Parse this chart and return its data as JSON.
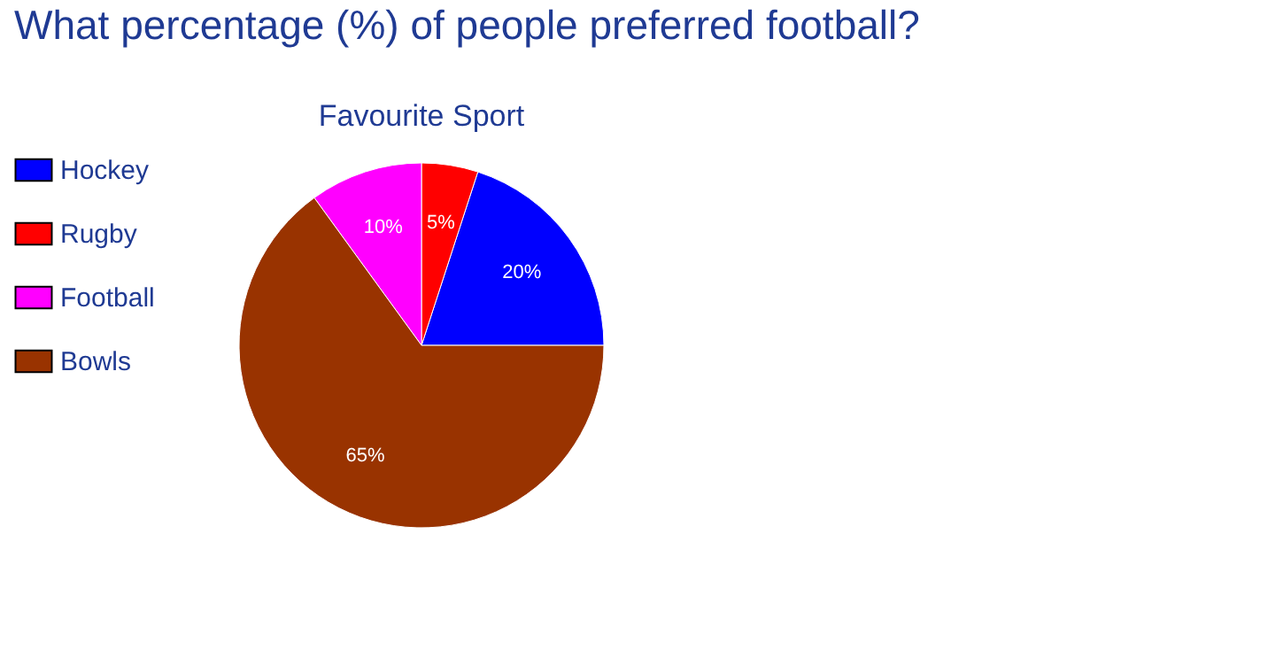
{
  "chart_data": {
    "type": "pie",
    "title": "What percentage (%) of people preferred football?",
    "subtitle": "Favourite Sport",
    "categories": [
      "Hockey",
      "Rugby",
      "Football",
      "Bowls"
    ],
    "values": [
      20,
      5,
      10,
      65
    ],
    "colors": [
      "#0000ff",
      "#ff0000",
      "#ff00ff",
      "#993300"
    ],
    "value_labels": [
      "20%",
      "5%",
      "10%",
      "65%"
    ],
    "legend": "left"
  }
}
